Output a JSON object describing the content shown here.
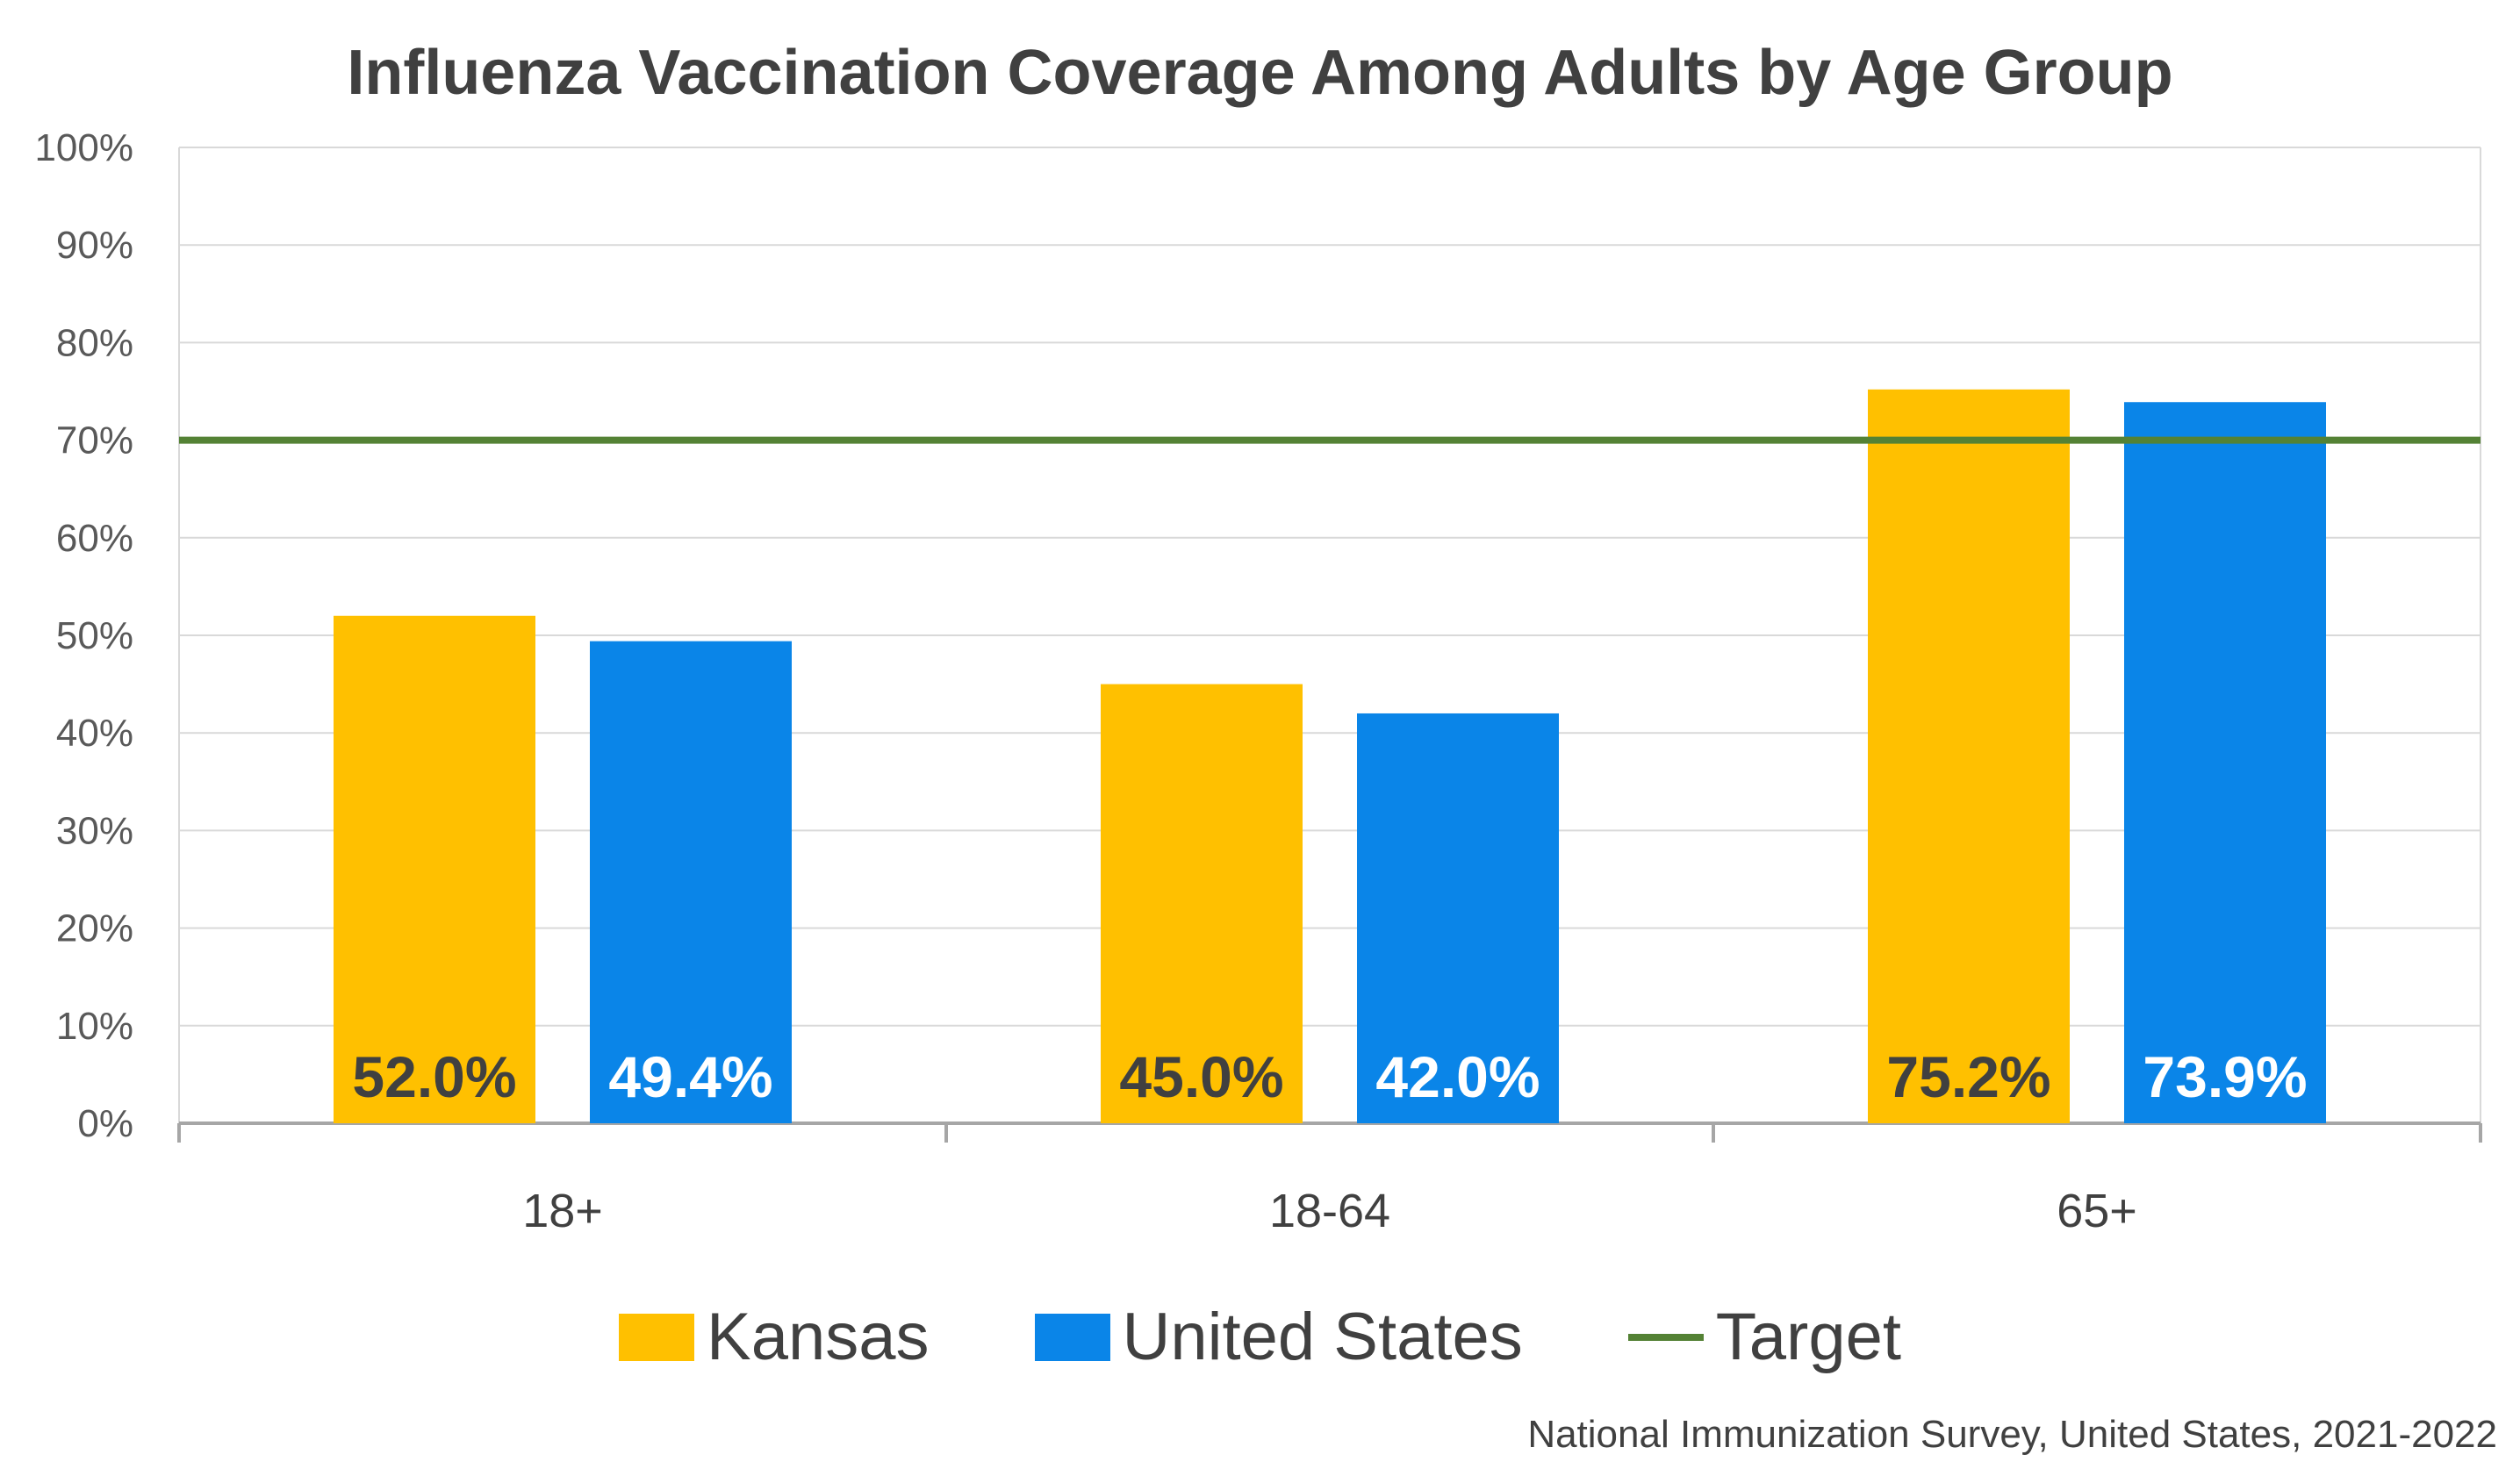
{
  "chart_data": {
    "type": "bar",
    "title": "Influenza Vaccination Coverage Among Adults by Age Group",
    "categories": [
      "18+",
      "18-64",
      "65+"
    ],
    "series": [
      {
        "name": "Kansas",
        "values": [
          52.0,
          45.0,
          75.2
        ],
        "labels": [
          "52.0%",
          "45.0%",
          "75.2%"
        ],
        "color": "#FFC000",
        "label_color": "#404040"
      },
      {
        "name": "United States",
        "values": [
          49.4,
          42.0,
          73.9
        ],
        "labels": [
          "49.4%",
          "42.0%",
          "73.9%"
        ],
        "color": "#0A85E8",
        "label_color": "#FFFFFF"
      }
    ],
    "target": {
      "name": "Target",
      "value": 70,
      "color": "#548235"
    },
    "ylim": [
      0,
      100
    ],
    "yticks": [
      0,
      10,
      20,
      30,
      40,
      50,
      60,
      70,
      80,
      90,
      100
    ],
    "ytick_labels": [
      "0%",
      "10%",
      "20%",
      "30%",
      "40%",
      "50%",
      "60%",
      "70%",
      "80%",
      "90%",
      "100%"
    ],
    "grid": true,
    "legend_position": "bottom",
    "xlabel": "",
    "ylabel": ""
  },
  "source": "National Immunization Survey, United States, 2021-2022"
}
